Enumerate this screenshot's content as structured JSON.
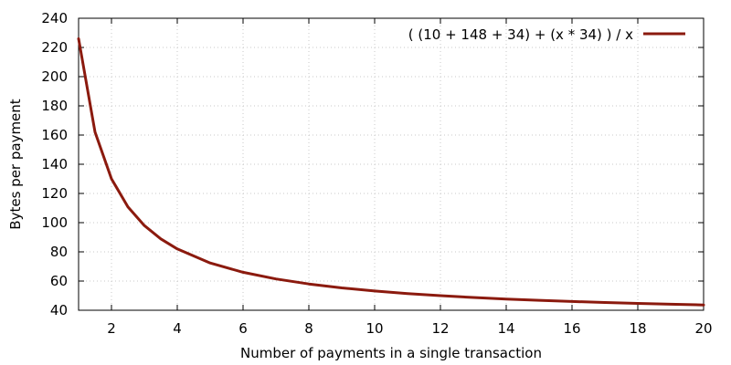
{
  "chart_data": {
    "type": "line",
    "title": "",
    "xlabel": "Number of payments in a single transaction",
    "ylabel": "Bytes per payment",
    "xlim": [
      1,
      20
    ],
    "ylim": [
      40,
      240
    ],
    "x_ticks": [
      2,
      4,
      6,
      8,
      10,
      12,
      14,
      16,
      18,
      20
    ],
    "y_ticks": [
      40,
      60,
      80,
      100,
      120,
      140,
      160,
      180,
      200,
      220,
      240
    ],
    "x_tick_labels": [
      "2",
      "4",
      "6",
      "8",
      "10",
      "12",
      "14",
      "16",
      "18",
      "20"
    ],
    "y_tick_labels": [
      "40",
      "60",
      "80",
      "100",
      "120",
      "140",
      "160",
      "180",
      "200",
      "220",
      "240"
    ],
    "grid": true,
    "legend_position": "top-right",
    "series": [
      {
        "name": "( (10 + 148 + 34) + (x * 34) ) / x",
        "color": "#8b1a0e",
        "x": [
          1,
          1.5,
          2,
          2.5,
          3,
          3.5,
          4,
          5,
          6,
          7,
          8,
          9,
          10,
          11,
          12,
          13,
          14,
          15,
          16,
          17,
          18,
          19,
          20
        ],
        "y": [
          226,
          162,
          130,
          110.8,
          98,
          88.86,
          82,
          72.4,
          66,
          61.43,
          58,
          55.33,
          53.2,
          51.45,
          50,
          48.77,
          47.71,
          46.8,
          46,
          45.29,
          44.67,
          44.11,
          43.6
        ]
      }
    ]
  }
}
